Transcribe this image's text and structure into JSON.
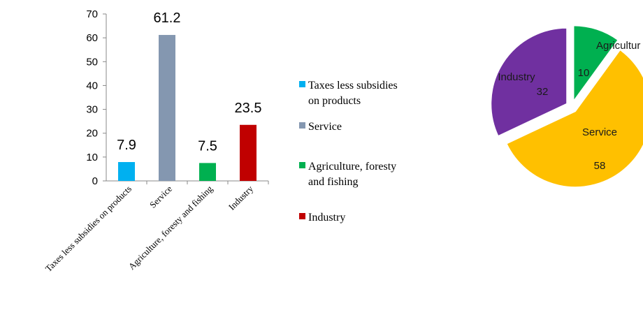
{
  "chart_data": [
    {
      "type": "bar",
      "categories": [
        "Taxes less subsidies on products",
        "Service",
        "Agriculture, foresty and fishing",
        "Industry"
      ],
      "values": [
        7.9,
        61.2,
        7.5,
        23.5
      ],
      "data_labels": [
        "7.9",
        "61.2",
        "7.5",
        "23.5"
      ],
      "colors": [
        "#00b0f0",
        "#8497b0",
        "#00b050",
        "#c00000"
      ],
      "ylim": [
        0,
        70
      ],
      "yticks": [
        0,
        10,
        20,
        30,
        40,
        50,
        60,
        70
      ],
      "grid": false,
      "legend": {
        "placement": "right",
        "entries": [
          [
            "Taxes less subsidies",
            "on products"
          ],
          [
            "Service"
          ],
          [
            "Agriculture, foresty",
            "and fishing"
          ],
          [
            "Industry"
          ]
        ]
      }
    },
    {
      "type": "pie",
      "categories": [
        "Agricultur",
        "Service",
        "Industry"
      ],
      "values": [
        10,
        58,
        32
      ],
      "value_labels": [
        "10",
        "58",
        "32"
      ],
      "colors": [
        "#00b050",
        "#ffc000",
        "#7030a0"
      ],
      "exploded": true
    }
  ]
}
